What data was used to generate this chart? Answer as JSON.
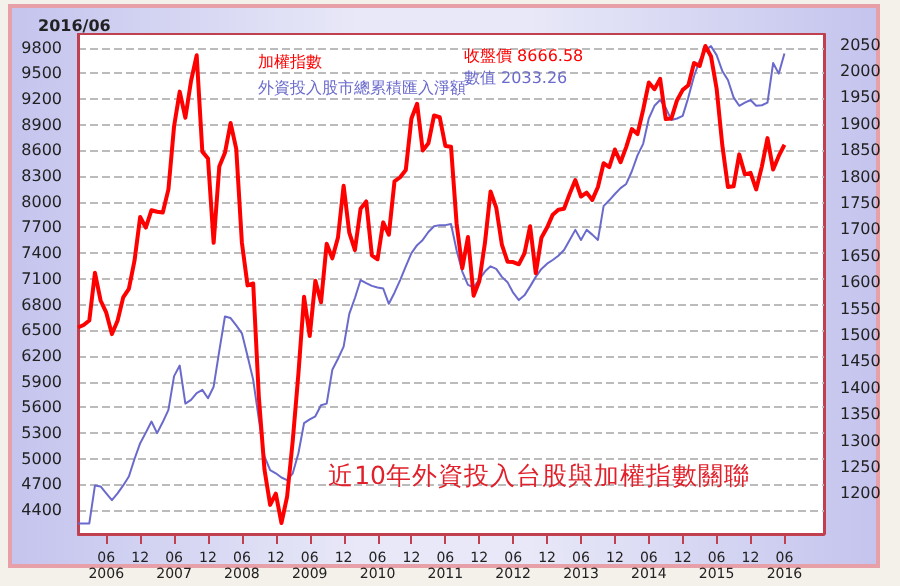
{
  "chart_data": {
    "type": "line",
    "title": "近10年外資投入台股與加權指數關聯",
    "subtitle": "2016/06",
    "x": [
      "2006-01",
      "2006-02",
      "2006-03",
      "2006-04",
      "2006-05",
      "2006-06",
      "2006-07",
      "2006-08",
      "2006-09",
      "2006-10",
      "2006-11",
      "2006-12",
      "2007-01",
      "2007-02",
      "2007-03",
      "2007-04",
      "2007-05",
      "2007-06",
      "2007-07",
      "2007-08",
      "2007-09",
      "2007-10",
      "2007-11",
      "2007-12",
      "2008-01",
      "2008-02",
      "2008-03",
      "2008-04",
      "2008-05",
      "2008-06",
      "2008-07",
      "2008-08",
      "2008-09",
      "2008-10",
      "2008-11",
      "2008-12",
      "2009-01",
      "2009-02",
      "2009-03",
      "2009-04",
      "2009-05",
      "2009-06",
      "2009-07",
      "2009-08",
      "2009-09",
      "2009-10",
      "2009-11",
      "2009-12",
      "2010-01",
      "2010-02",
      "2010-03",
      "2010-04",
      "2010-05",
      "2010-06",
      "2010-07",
      "2010-08",
      "2010-09",
      "2010-10",
      "2010-11",
      "2010-12",
      "2011-01",
      "2011-02",
      "2011-03",
      "2011-04",
      "2011-05",
      "2011-06",
      "2011-07",
      "2011-08",
      "2011-09",
      "2011-10",
      "2011-11",
      "2011-12",
      "2012-01",
      "2012-02",
      "2012-03",
      "2012-04",
      "2012-05",
      "2012-06",
      "2012-07",
      "2012-08",
      "2012-09",
      "2012-10",
      "2012-11",
      "2012-12",
      "2013-01",
      "2013-02",
      "2013-03",
      "2013-04",
      "2013-05",
      "2013-06",
      "2013-07",
      "2013-08",
      "2013-09",
      "2013-10",
      "2013-11",
      "2013-12",
      "2014-01",
      "2014-02",
      "2014-03",
      "2014-04",
      "2014-05",
      "2014-06",
      "2014-07",
      "2014-08",
      "2014-09",
      "2014-10",
      "2014-11",
      "2014-12",
      "2015-01",
      "2015-02",
      "2015-03",
      "2015-04",
      "2015-05",
      "2015-06",
      "2015-07",
      "2015-08",
      "2015-09",
      "2015-10",
      "2015-11",
      "2015-12",
      "2016-01",
      "2016-02",
      "2016-03",
      "2016-04",
      "2016-05",
      "2016-06"
    ],
    "xlim": [
      "2006-01",
      "2017-01"
    ],
    "xticks": [
      {
        "value": "2006-06",
        "label": "06\n2006"
      },
      {
        "value": "2006-12",
        "label": "12"
      },
      {
        "value": "2007-06",
        "label": "06\n2007"
      },
      {
        "value": "2007-12",
        "label": "12"
      },
      {
        "value": "2008-06",
        "label": "06\n2008"
      },
      {
        "value": "2008-12",
        "label": "12"
      },
      {
        "value": "2009-06",
        "label": "06\n2009"
      },
      {
        "value": "2009-12",
        "label": "12"
      },
      {
        "value": "2010-06",
        "label": "06\n2010"
      },
      {
        "value": "2010-12",
        "label": "12"
      },
      {
        "value": "2011-06",
        "label": "06\n2011"
      },
      {
        "value": "2011-12",
        "label": "12"
      },
      {
        "value": "2012-06",
        "label": "06\n2012"
      },
      {
        "value": "2012-12",
        "label": "12"
      },
      {
        "value": "2013-06",
        "label": "06\n2013"
      },
      {
        "value": "2013-12",
        "label": "12"
      },
      {
        "value": "2014-06",
        "label": "06\n2014"
      },
      {
        "value": "2014-12",
        "label": "12"
      },
      {
        "value": "2015-06",
        "label": "06\n2015"
      },
      {
        "value": "2015-12",
        "label": "12"
      },
      {
        "value": "2016-06",
        "label": "06\n2016"
      }
    ],
    "ylim": [
      4120,
      9960
    ],
    "yticks": [
      4400,
      4700,
      5000,
      5300,
      5600,
      5900,
      6200,
      6500,
      6800,
      7100,
      7400,
      7700,
      8000,
      8300,
      8600,
      8900,
      9200,
      9500,
      9800
    ],
    "y2lim": [
      1123,
      2070
    ],
    "y2ticks": [
      1200,
      1250,
      1300,
      1350,
      1400,
      1450,
      1500,
      1550,
      1600,
      1650,
      1700,
      1750,
      1800,
      1850,
      1900,
      1950,
      2000,
      2050
    ],
    "series": [
      {
        "name": "加權指數",
        "color": "#ff0000",
        "values": [
          6532,
          6561,
          6614,
          7171,
          6847,
          6705,
          6455,
          6611,
          6884,
          6983,
          7312,
          7823,
          7699,
          7902,
          7884,
          7875,
          8145,
          8883,
          9287,
          8982,
          9411,
          9711,
          8586,
          8506,
          7521,
          8412,
          8572,
          8920,
          8619,
          7523,
          7024,
          7046,
          5719,
          4870,
          4460,
          4591,
          4248,
          4557,
          5211,
          5992,
          6890,
          6432,
          7078,
          6826,
          7509,
          7340,
          7582,
          8188,
          7640,
          7436,
          7920,
          8004,
          7374,
          7329,
          7760,
          7616,
          8238,
          8287,
          8372,
          8973,
          9145,
          8600,
          8683,
          9008,
          8988,
          8653,
          8644,
          7741,
          7225,
          7588,
          6904,
          7072,
          7517,
          8121,
          7933,
          7501,
          7301,
          7296,
          7270,
          7397,
          7715,
          7166,
          7580,
          7699,
          7850,
          7908,
          7919,
          8094,
          8254,
          8062,
          8107,
          8022,
          8173,
          8450,
          8406,
          8611,
          8462,
          8639,
          8849,
          8791,
          9075,
          9393,
          9315,
          9436,
          8966,
          8974,
          9187,
          9307,
          9361,
          9622,
          9586,
          9820,
          9701,
          9323,
          8665,
          8174,
          8181,
          8554,
          8320,
          8338,
          8145,
          8411,
          8744,
          8377,
          8536,
          8666.58
        ]
      },
      {
        "name": "外資投入股市總累積匯入淨額",
        "color": "#6a6acc",
        "axis": "y2",
        "values": [
          1143,
          1143,
          1143,
          1215,
          1213,
          1200,
          1187,
          1200,
          1215,
          1232,
          1265,
          1295,
          1315,
          1336,
          1314,
          1335,
          1358,
          1422,
          1442,
          1370,
          1377,
          1390,
          1396,
          1380,
          1402,
          1470,
          1535,
          1532,
          1518,
          1503,
          1460,
          1415,
          1340,
          1270,
          1244,
          1238,
          1230,
          1225,
          1238,
          1276,
          1333,
          1340,
          1346,
          1367,
          1370,
          1434,
          1455,
          1478,
          1540,
          1570,
          1604,
          1598,
          1593,
          1590,
          1588,
          1559,
          1580,
          1604,
          1630,
          1655,
          1670,
          1680,
          1695,
          1706,
          1708,
          1708,
          1710,
          1660,
          1620,
          1595,
          1590,
          1605,
          1620,
          1630,
          1625,
          1610,
          1600,
          1580,
          1566,
          1575,
          1592,
          1610,
          1625,
          1635,
          1642,
          1650,
          1661,
          1680,
          1699,
          1680,
          1699,
          1690,
          1680,
          1744,
          1755,
          1767,
          1778,
          1786,
          1810,
          1840,
          1862,
          1910,
          1934,
          1945,
          1930,
          1907,
          1910,
          1915,
          1950,
          1990,
          2020,
          2040,
          2047,
          2030,
          2000,
          1983,
          1950,
          1934,
          1940,
          1945,
          1934,
          1935,
          1940,
          2015,
          1995,
          2033.26
        ]
      }
    ],
    "annotations": [
      "收盤價 8666.58",
      "數值 2033.26"
    ],
    "grid": "y",
    "legend": "top",
    "marker": "none"
  }
}
